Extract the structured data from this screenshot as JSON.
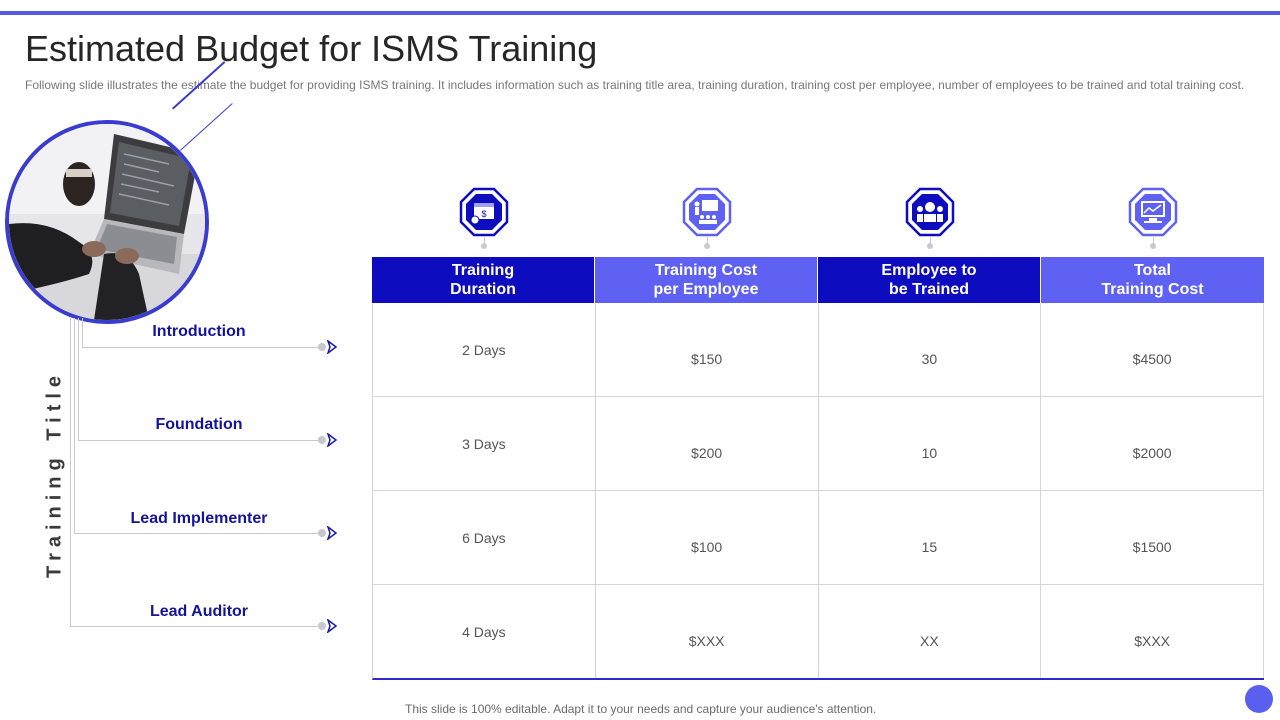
{
  "slide": {
    "title": "Estimated Budget for ISMS Training",
    "subtitle": "Following slide illustrates the estimate the budget for providing ISMS training. It includes information  such as training title area, training duration, training cost per employee, number of employees to be trained and total training cost.",
    "vertical_label": "Training Title",
    "footer": "This slide is 100% editable. Adapt it to your needs and capture your audience's attention."
  },
  "training_titles": [
    "Introduction",
    "Foundation",
    "Lead Implementer",
    "Lead Auditor"
  ],
  "table": {
    "headers": [
      "Training\nDuration",
      "Training Cost\nper Employee",
      "Employee to\nbe Trained",
      "Total\nTraining Cost"
    ],
    "icons": [
      "calendar-money-icon",
      "presentation-group-icon",
      "team-meeting-icon",
      "monitor-chart-icon"
    ],
    "rows": [
      [
        "2 Days",
        "$150",
        "30",
        "$4500"
      ],
      [
        "3 Days",
        "$200",
        "10",
        "$2000"
      ],
      [
        "6 Days",
        "$100",
        "15",
        "$1500"
      ],
      [
        "4 Days",
        "$XXX",
        "XX",
        "$XXX"
      ]
    ]
  },
  "colors": {
    "accent_dark": "#0d0dbf",
    "accent_light": "#5e61f2",
    "label_blue": "#14149a"
  }
}
